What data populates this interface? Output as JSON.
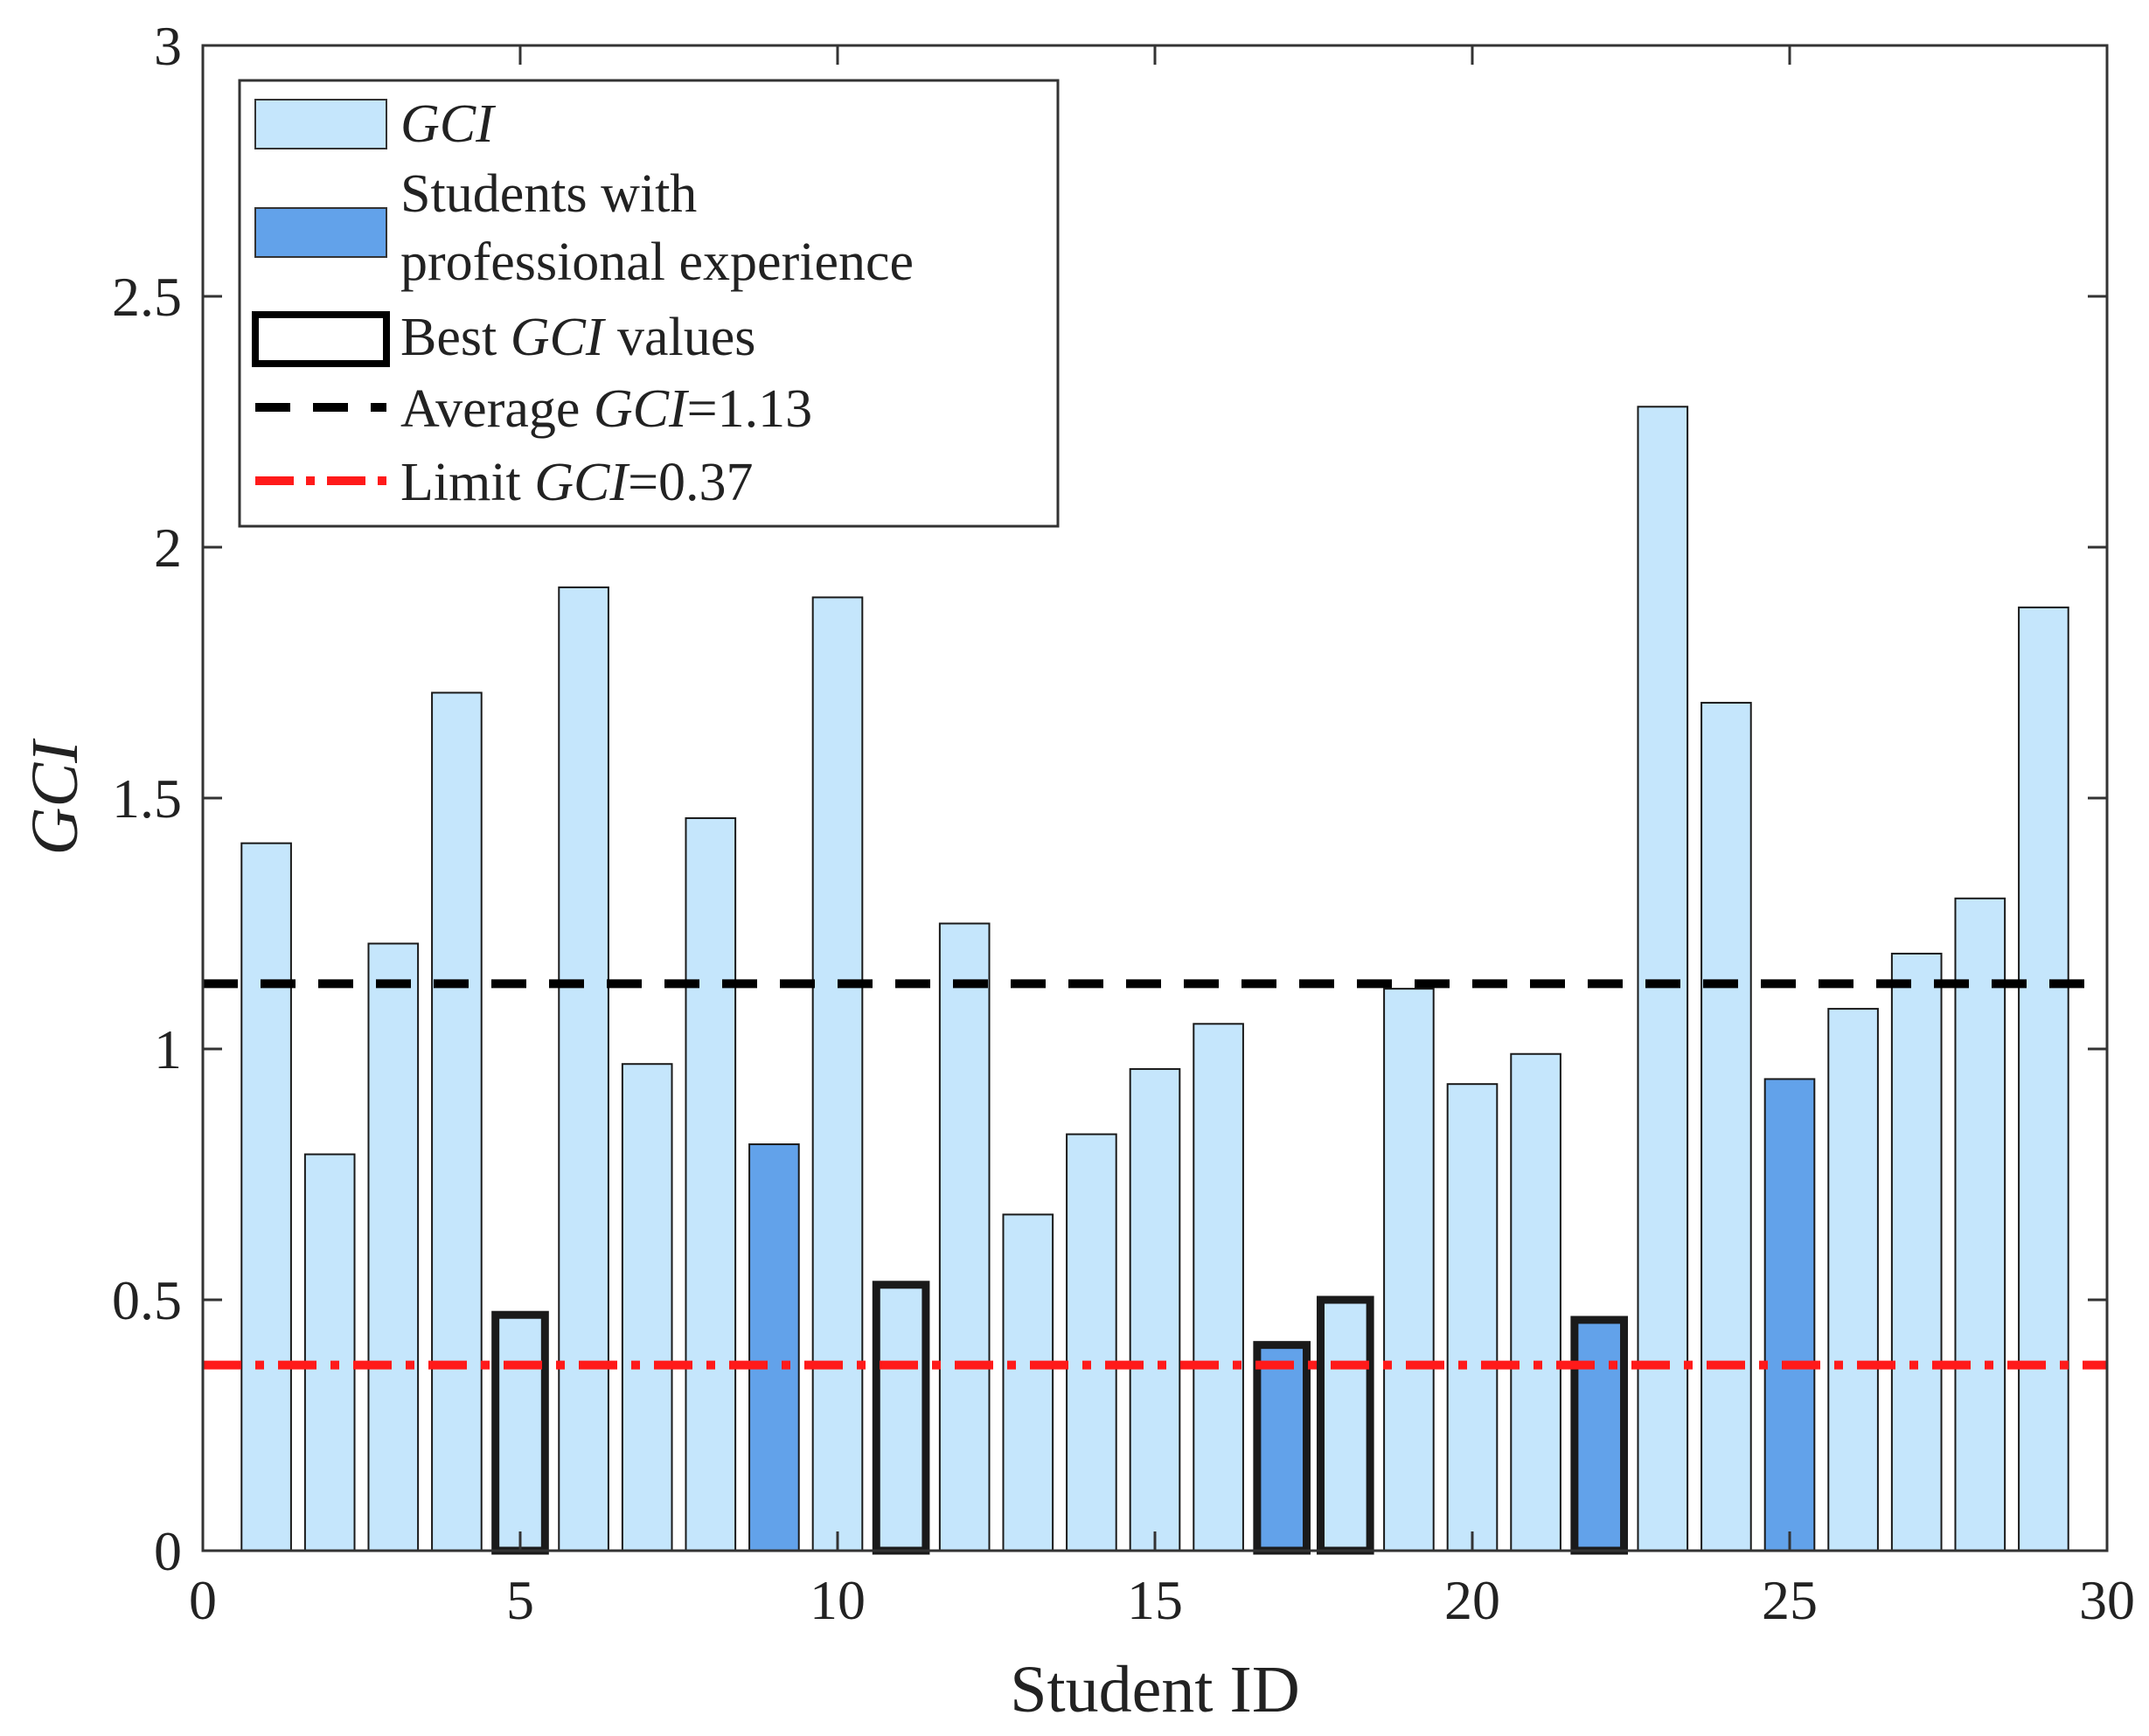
{
  "chart_data": {
    "type": "bar",
    "xlabel": "Student ID",
    "ylabel": "GCI",
    "xlim": [
      0,
      30
    ],
    "ylim": [
      0,
      3
    ],
    "x_ticks": [
      0,
      5,
      10,
      15,
      20,
      25,
      30
    ],
    "y_ticks": [
      0,
      0.5,
      1,
      1.5,
      2,
      2.5,
      3
    ],
    "x_tick_labels": [
      "0",
      "5",
      "10",
      "15",
      "20",
      "25",
      "30"
    ],
    "y_tick_labels": [
      "0",
      "0.5",
      "1",
      "1.5",
      "2",
      "2.5",
      "3"
    ],
    "students": [
      1,
      2,
      3,
      4,
      5,
      6,
      7,
      8,
      9,
      10,
      11,
      12,
      13,
      14,
      15,
      16,
      17,
      18,
      19,
      20,
      21,
      22,
      23,
      24,
      25,
      26,
      27,
      28,
      29
    ],
    "values": [
      1.41,
      0.79,
      1.21,
      1.71,
      0.47,
      1.92,
      0.97,
      1.46,
      0.81,
      1.9,
      0.53,
      1.25,
      0.67,
      0.83,
      0.96,
      1.05,
      0.41,
      0.5,
      1.12,
      0.93,
      0.99,
      0.46,
      2.28,
      1.69,
      0.94,
      1.08,
      1.19,
      1.3,
      1.88
    ],
    "professional_experience": [
      9,
      17,
      22,
      25
    ],
    "best_gci": [
      5,
      11,
      17,
      18,
      22
    ],
    "average_gci": 1.13,
    "limit_gci": 0.37,
    "colors": {
      "bar": "#c5e6fc",
      "professional": "#62a2ea",
      "bar_edge": "#1a1a1a",
      "average_line": "#000000",
      "limit_line": "#ff1a1a"
    },
    "legend": {
      "placement": "top-left",
      "gci": {
        "prefix": "",
        "italic": "GCI",
        "suffix": ""
      },
      "professional_line1": "Students with",
      "professional_line2": "professional experience",
      "best": {
        "prefix": "Best ",
        "italic": "GCI",
        "suffix": " values"
      },
      "average": {
        "prefix": "Average ",
        "italic": "GCI",
        "suffix": "=1.13"
      },
      "limit": {
        "prefix": "Limit ",
        "italic": "GCI",
        "suffix": "=0.37"
      }
    }
  }
}
